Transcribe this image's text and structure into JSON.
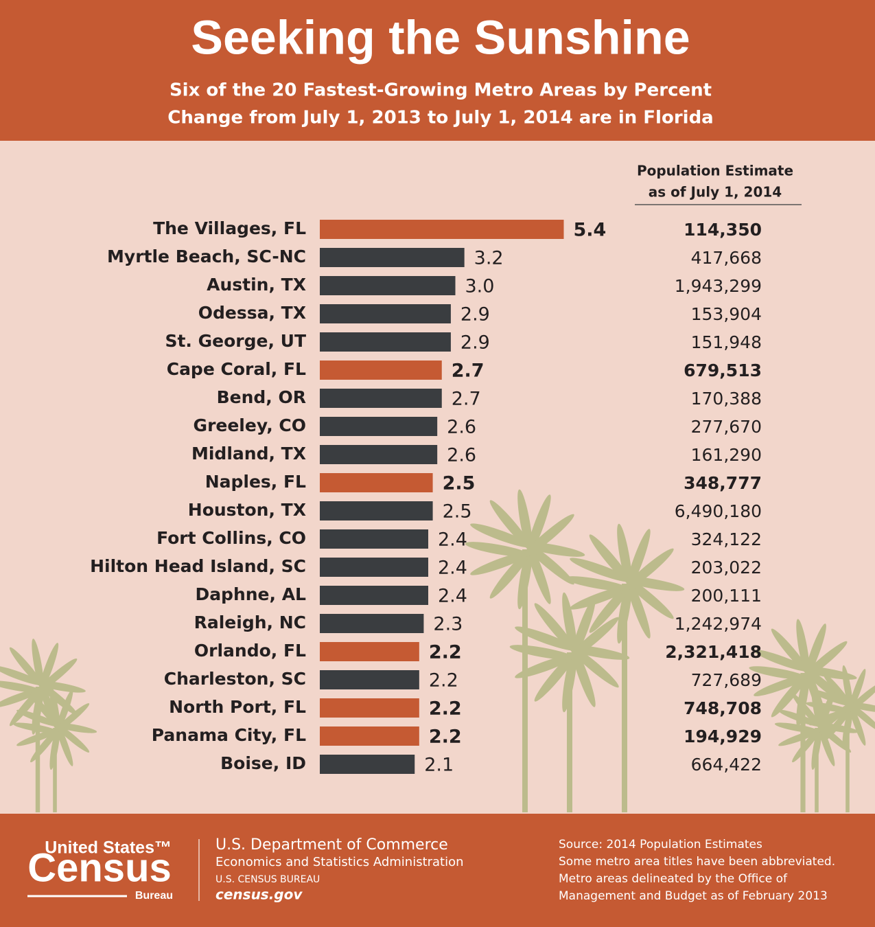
{
  "chart_data": {
    "type": "bar",
    "title": "Seeking the Sunshine",
    "subtitle": [
      "Six of the 20 Fastest-Growing Metro Areas by Percent",
      "Change from July 1, 2013 to July 1, 2014 are in Florida"
    ],
    "categories": [
      "The Villages, FL",
      "Myrtle Beach, SC-NC",
      "Austin, TX",
      "Odessa, TX",
      "St. George, UT",
      "Cape Coral, FL",
      "Bend, OR",
      "Greeley, CO",
      "Midland, TX",
      "Naples, FL",
      "Houston, TX",
      "Fort Collins, CO",
      "Hilton Head Island, SC",
      "Daphne, AL",
      "Raleigh, NC",
      "Orlando, FL",
      "Charleston, SC",
      "North Port, FL",
      "Panama City, FL",
      "Boise, ID"
    ],
    "values": [
      5.4,
      3.2,
      3.0,
      2.9,
      2.9,
      2.7,
      2.7,
      2.6,
      2.6,
      2.5,
      2.5,
      2.4,
      2.4,
      2.4,
      2.3,
      2.2,
      2.2,
      2.2,
      2.2,
      2.1
    ],
    "value_labels": [
      "5.4",
      "3.2",
      "3.0",
      "2.9",
      "2.9",
      "2.7",
      "2.7",
      "2.6",
      "2.6",
      "2.5",
      "2.5",
      "2.4",
      "2.4",
      "2.4",
      "2.3",
      "2.2",
      "2.2",
      "2.2",
      "2.2",
      "2.1"
    ],
    "colors": [
      "#c55a33",
      "#3a3d40",
      "#3a3d40",
      "#3a3d40",
      "#3a3d40",
      "#c55a33",
      "#3a3d40",
      "#3a3d40",
      "#3a3d40",
      "#c55a33",
      "#3a3d40",
      "#3a3d40",
      "#3a3d40",
      "#3a3d40",
      "#3a3d40",
      "#c55a33",
      "#3a3d40",
      "#c55a33",
      "#c55a33",
      "#3a3d40"
    ],
    "highlight_color": "#c55a33",
    "xlim": [
      0,
      6
    ],
    "population": {
      "title": [
        "Population Estimate",
        "as of July 1, 2014"
      ],
      "values": [
        "114,350",
        "417,668",
        "1,943,299",
        "153,904",
        "151,948",
        "679,513",
        "170,388",
        "277,670",
        "161,290",
        "348,777",
        "6,490,180",
        "324,122",
        "203,022",
        "200,111",
        "1,242,974",
        "2,321,418",
        "727,689",
        "748,708",
        "194,929",
        "664,422"
      ]
    }
  },
  "footer": {
    "logo": [
      "United States™",
      "Census",
      "Bureau"
    ],
    "department": [
      "U.S. Department of Commerce",
      "Economics and Statistics Administration",
      "U.S. CENSUS BUREAU",
      "census.gov"
    ],
    "source": [
      "Source: 2014 Population Estimates",
      "Some metro area titles have been abbreviated.",
      "Metro areas delineated by the Office of",
      "Management and Budget as of February 2013"
    ]
  }
}
